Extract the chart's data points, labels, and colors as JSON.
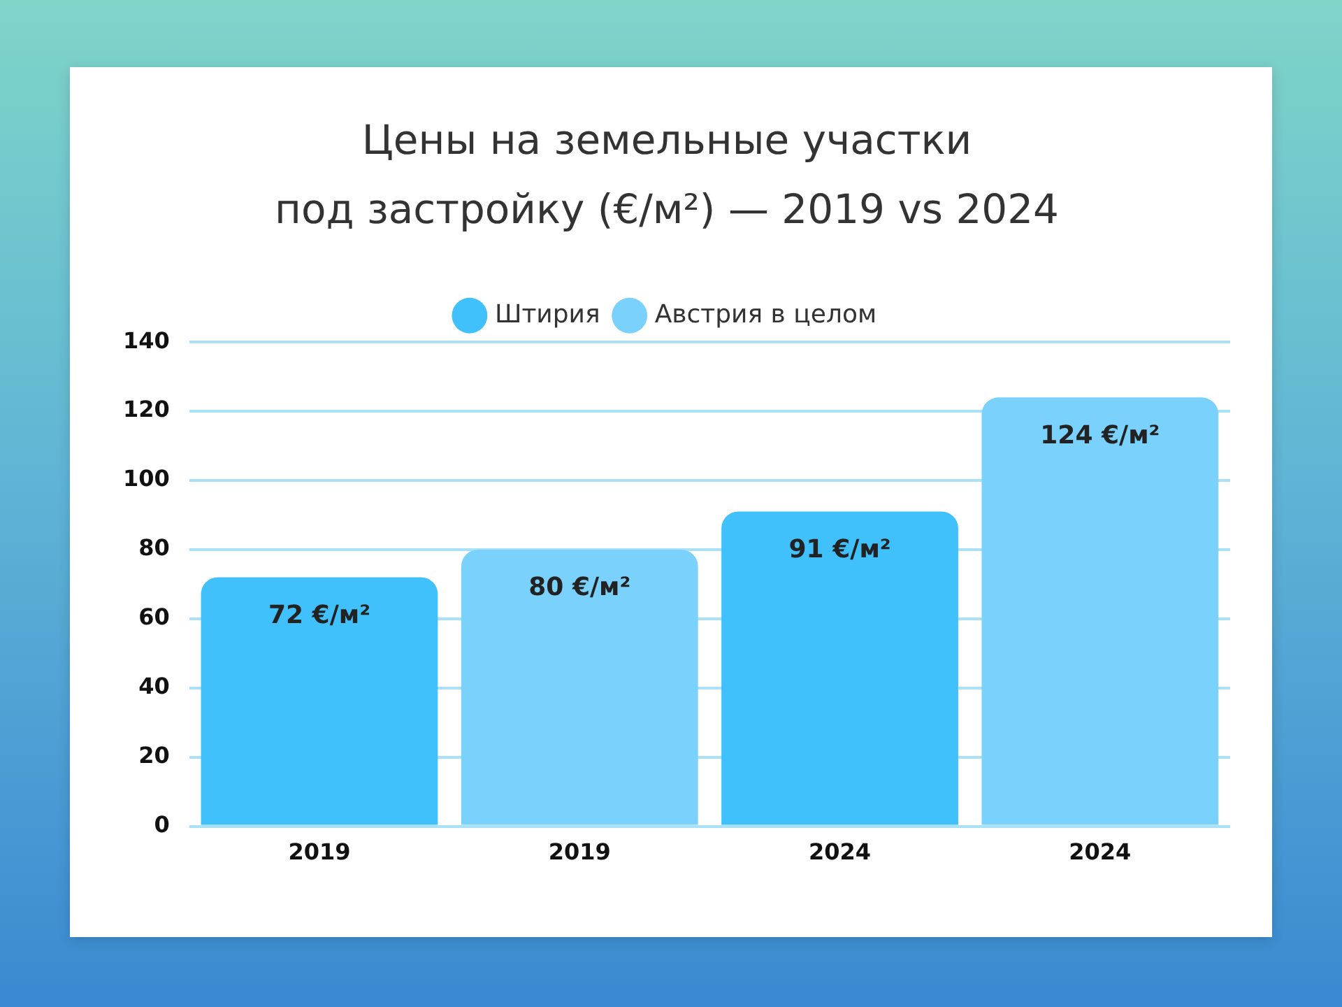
{
  "chart_data": {
    "type": "bar",
    "title": "Цены на земельные участки\nпод застройку (€/м²) — 2019 vs 2024",
    "categories": [
      "2019",
      "2019",
      "2024",
      "2024"
    ],
    "series": [
      {
        "name": "Штирия",
        "color": "#40c1fc",
        "values": [
          72,
          null,
          91,
          null
        ],
        "value_labels": [
          "72 €/м²",
          null,
          "91 €/м²",
          null
        ]
      },
      {
        "name": "Австрия в целом",
        "color": "#7ad2fc",
        "values": [
          null,
          80,
          null,
          124
        ],
        "value_labels": [
          null,
          "80 €/м²",
          null,
          "124 €/м²"
        ]
      }
    ],
    "ylim": [
      0,
      140
    ],
    "yticks": [
      0,
      20,
      40,
      60,
      80,
      100,
      120,
      140
    ],
    "grid": "y",
    "legend": "top"
  }
}
